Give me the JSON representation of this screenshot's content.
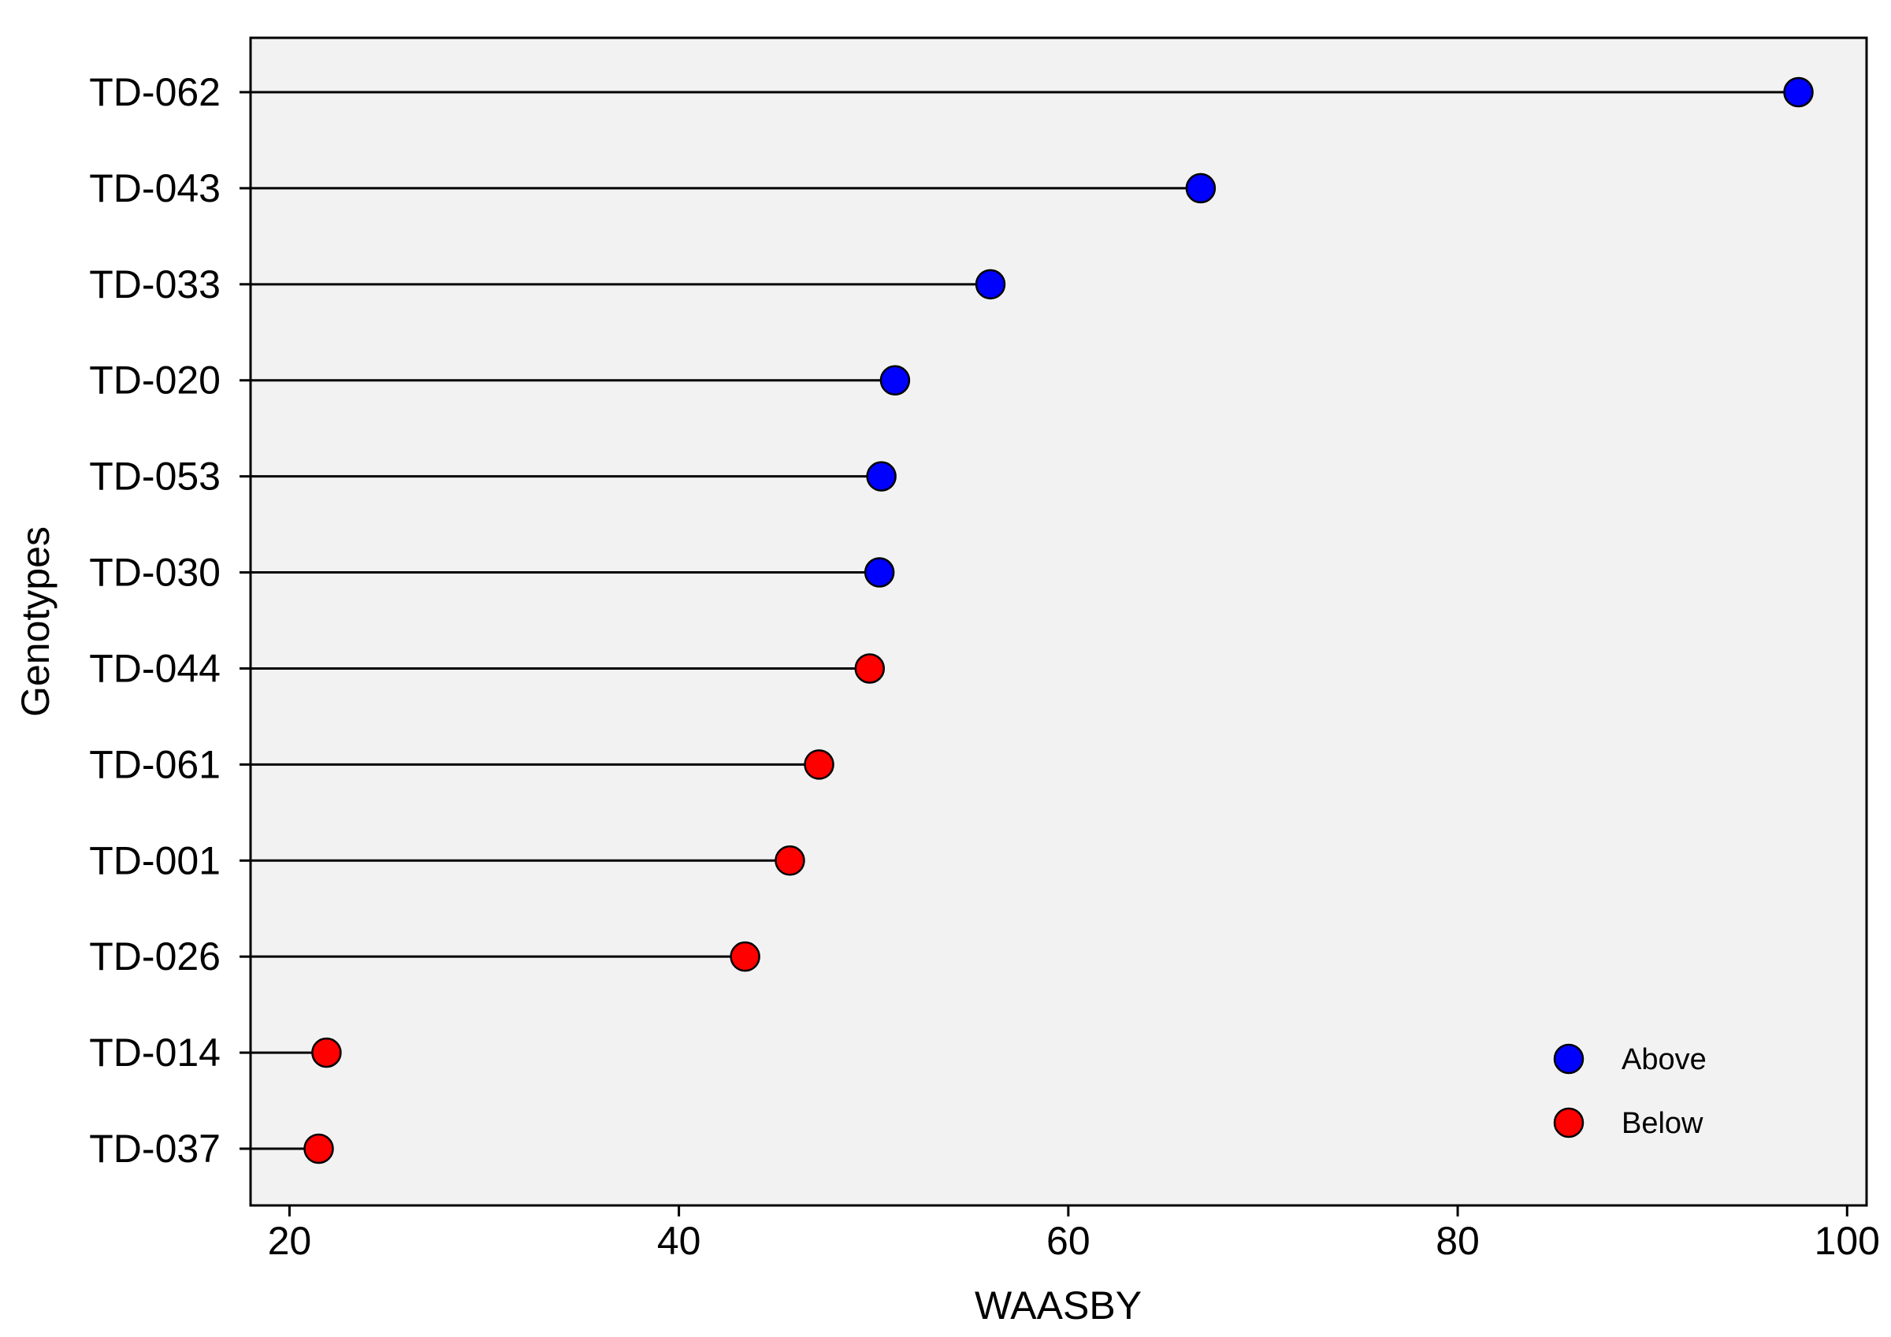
{
  "chart_data": {
    "type": "lollipop",
    "orientation": "horizontal",
    "xlabel": "WAASBY",
    "ylabel": "Genotypes",
    "xlim": [
      18,
      101
    ],
    "xticks": [
      20,
      40,
      60,
      80,
      100
    ],
    "grid": false,
    "legend_position": "bottom-right",
    "colors": {
      "Above": "#0000ff",
      "Below": "#ff0000",
      "panel": "#f2f2f2",
      "stem": "#000000"
    },
    "legend": [
      {
        "name": "Above",
        "label": "Above"
      },
      {
        "name": "Below",
        "label": "Below"
      }
    ],
    "points": [
      {
        "genotype": "TD-062",
        "value": 97.5,
        "group": "Above"
      },
      {
        "genotype": "TD-043",
        "value": 66.8,
        "group": "Above"
      },
      {
        "genotype": "TD-033",
        "value": 56.0,
        "group": "Above"
      },
      {
        "genotype": "TD-020",
        "value": 51.1,
        "group": "Above"
      },
      {
        "genotype": "TD-053",
        "value": 50.4,
        "group": "Above"
      },
      {
        "genotype": "TD-030",
        "value": 50.3,
        "group": "Above"
      },
      {
        "genotype": "TD-044",
        "value": 49.8,
        "group": "Below"
      },
      {
        "genotype": "TD-061",
        "value": 47.2,
        "group": "Below"
      },
      {
        "genotype": "TD-001",
        "value": 45.7,
        "group": "Below"
      },
      {
        "genotype": "TD-026",
        "value": 43.4,
        "group": "Below"
      },
      {
        "genotype": "TD-014",
        "value": 21.9,
        "group": "Below"
      },
      {
        "genotype": "TD-037",
        "value": 21.5,
        "group": "Below"
      }
    ]
  }
}
